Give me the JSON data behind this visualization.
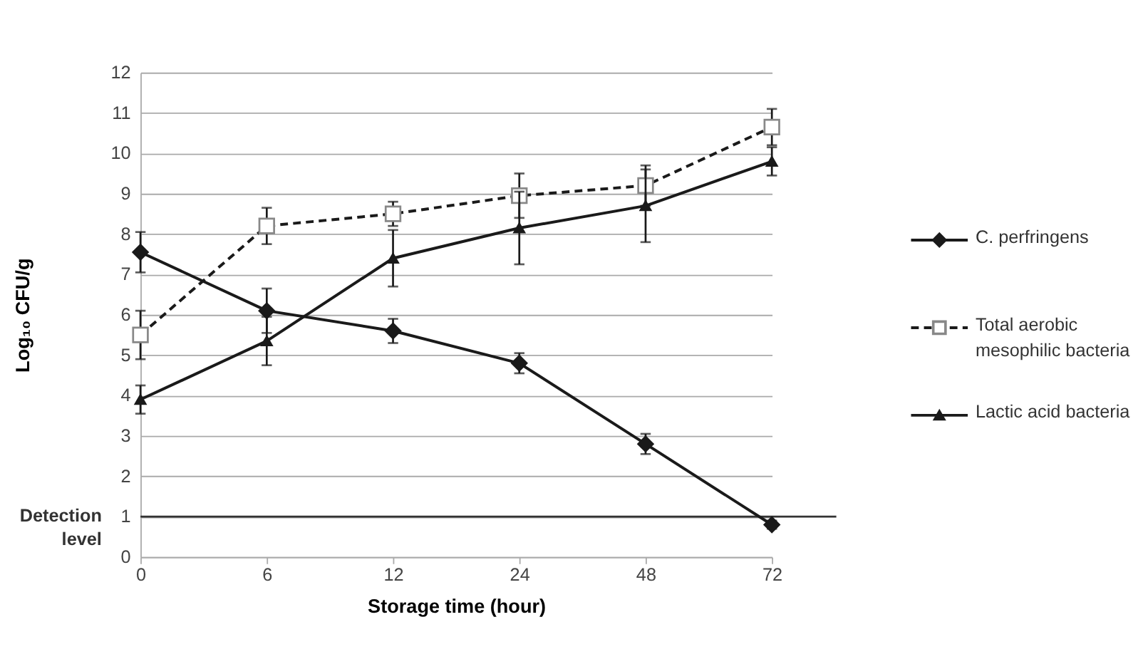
{
  "chart_data": {
    "type": "line",
    "xlabel": "Storage time (hour)",
    "ylabel": "Log₁₀ CFU/g",
    "categories": [
      "0",
      "6",
      "12",
      "24",
      "48",
      "72"
    ],
    "series": [
      {
        "name": "C. perfringens",
        "color": "#1a1a1a",
        "marker": "diamond",
        "line_style": "solid",
        "values": [
          7.55,
          6.1,
          5.6,
          4.8,
          2.8,
          0.8
        ],
        "errors": [
          0.5,
          0.55,
          0.3,
          0.25,
          0.25,
          0.1
        ]
      },
      {
        "name": "Total aerobic mesophilic bacteria",
        "color": "#1a1a1a",
        "marker": "square",
        "line_style": "dashed",
        "values": [
          5.5,
          8.2,
          8.5,
          8.95,
          9.2,
          10.65
        ],
        "errors": [
          0.6,
          0.45,
          0.3,
          0.55,
          0.5,
          0.45
        ]
      },
      {
        "name": "Lactic acid bacteria",
        "color": "#1a1a1a",
        "marker": "triangle",
        "line_style": "solid",
        "values": [
          3.9,
          5.35,
          7.4,
          8.15,
          8.7,
          9.8
        ],
        "errors": [
          0.35,
          0.6,
          0.7,
          0.9,
          0.9,
          0.35
        ]
      }
    ],
    "ylim": [
      0,
      12
    ],
    "yticks": [
      0,
      1,
      2,
      3,
      4,
      5,
      6,
      7,
      8,
      9,
      10,
      11,
      12
    ],
    "grid": "y",
    "legend": "right",
    "ref_lines": [
      {
        "axis": "y",
        "value": 1,
        "label": "Detection level",
        "color": "#333333",
        "line_style": "solid"
      }
    ]
  }
}
